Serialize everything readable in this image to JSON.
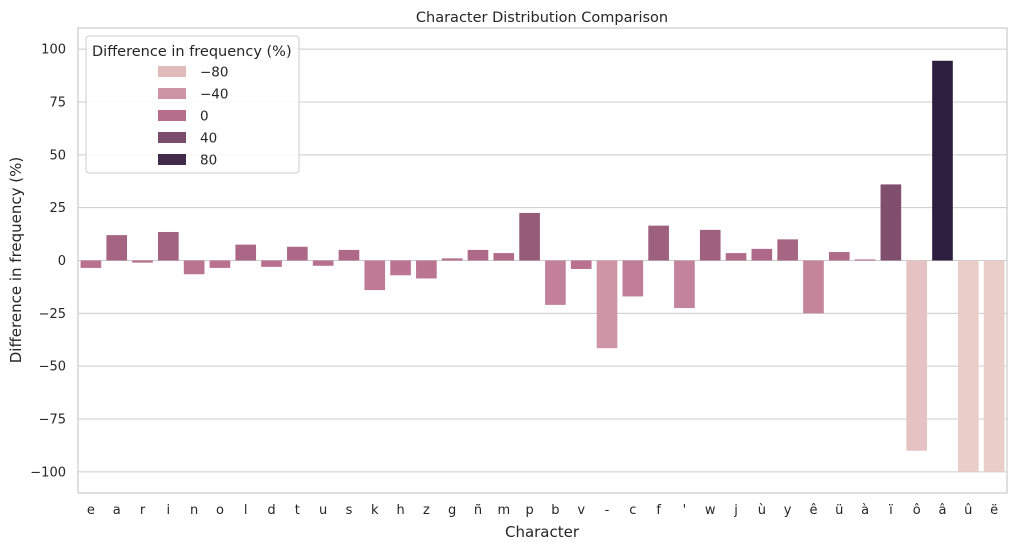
{
  "chart_data": {
    "type": "bar",
    "title": "Character Distribution Comparison",
    "xlabel": "Character",
    "ylabel": "Difference in frequency (%)",
    "ylim": [
      -110,
      110
    ],
    "yticks": [
      -100,
      -75,
      -50,
      -25,
      0,
      25,
      50,
      75,
      100
    ],
    "ytick_labels": [
      "−100",
      "−75",
      "−50",
      "−25",
      "0",
      "25",
      "50",
      "75",
      "100"
    ],
    "grid": true,
    "categories": [
      "e",
      "a",
      "r",
      "i",
      "n",
      "o",
      "l",
      "d",
      "t",
      "u",
      "s",
      "k",
      "h",
      "z",
      "g",
      "ñ",
      "m",
      "p",
      "b",
      "v",
      "-",
      "c",
      "f",
      "'",
      "w",
      "j",
      "ù",
      "y",
      "ê",
      "ü",
      "à",
      "ï",
      "ô",
      "â",
      "û",
      "ë"
    ],
    "values": [
      -3.5,
      12,
      -1,
      13.5,
      -6.5,
      -3.5,
      7.5,
      -3,
      6.5,
      -2.5,
      5,
      -14,
      -7,
      -8.5,
      1,
      5,
      3.5,
      22.5,
      -21,
      -4,
      -41.5,
      -17,
      16.5,
      -22.5,
      14.5,
      3.5,
      5.5,
      10,
      -25,
      4,
      0.5,
      36,
      -90,
      94.5,
      -100,
      -100
    ],
    "hue_range": [
      -100,
      94.5
    ],
    "colors": {
      "hue_low": "#ebcdc8",
      "hue_mid": "#b9708e",
      "hue_high": "#2d1e3e",
      "grid": "#cccccc",
      "frame": "#cccccc"
    },
    "legend": {
      "title": "Difference in frequency (%)",
      "placement": "top-left",
      "entries": [
        {
          "label": "−80",
          "value": -80
        },
        {
          "label": "−40",
          "value": -40
        },
        {
          "label": "0",
          "value": 0
        },
        {
          "label": "40",
          "value": 40
        },
        {
          "label": "80",
          "value": 80
        }
      ]
    }
  }
}
